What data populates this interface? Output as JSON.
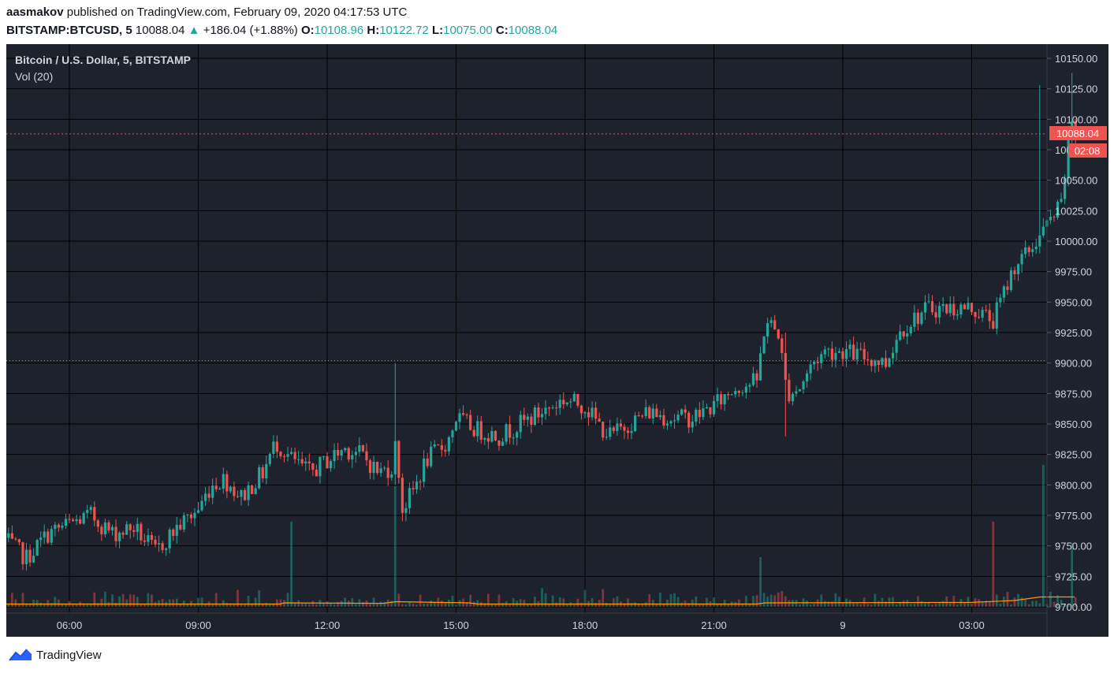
{
  "header": {
    "user": "aasmakov",
    "published_text": "published on TradingView.com, February 09, 2020 04:17:53 UTC",
    "symbol": "BITSTAMP:BTCUSD, 5",
    "last": "10088.04",
    "change": "+186.04 (+1.88%)",
    "o_label": "O:",
    "o_value": "10108.96",
    "h_label": "H:",
    "h_value": "10122.72",
    "l_label": "L:",
    "l_value": "10075.00",
    "c_label": "C:",
    "c_value": "10088.04"
  },
  "legend": {
    "series_title": "Bitcoin / U.S. Dollar, 5, BITSTAMP",
    "volume_title": "Vol (20)"
  },
  "price_tag": {
    "value": "10088.04",
    "countdown": "02:08"
  },
  "footer": {
    "brand": "TradingView"
  },
  "colors": {
    "background": "#1e222d",
    "grid": "#000000",
    "up": "#26a69a",
    "down": "#ef5350",
    "price_line": "#ef5350",
    "ma_line": "#ff9800",
    "axis_text": "#d1d4dc"
  },
  "chart_data": {
    "type": "candlestick",
    "title": "Bitcoin / U.S. Dollar, 5, BITSTAMP",
    "interval": "5",
    "y_ticks": [
      "9700.00",
      "9725.00",
      "9750.00",
      "9775.00",
      "9800.00",
      "9825.00",
      "9850.00",
      "9875.00",
      "9900.00",
      "9925.00",
      "9950.00",
      "9975.00",
      "10000.00",
      "10025.00",
      "10050.00",
      "10075.00",
      "10100.00",
      "10125.00",
      "10150.00"
    ],
    "ylim": [
      9700,
      10150
    ],
    "x_ticks": [
      "06:00",
      "09:00",
      "12:00",
      "15:00",
      "18:00",
      "21:00",
      "9",
      "03:00"
    ],
    "xlim_hours": [
      4.5,
      29.4
    ],
    "last_price": 10088.04,
    "previous_close": 9902.0,
    "price_path": [
      [
        4.5,
        9755
      ],
      [
        5.0,
        9740
      ],
      [
        5.5,
        9760
      ],
      [
        6.0,
        9768
      ],
      [
        6.5,
        9775
      ],
      [
        7.0,
        9760
      ],
      [
        7.5,
        9765
      ],
      [
        8.0,
        9745
      ],
      [
        8.5,
        9765
      ],
      [
        9.0,
        9780
      ],
      [
        9.3,
        9800
      ],
      [
        9.6,
        9805
      ],
      [
        10.0,
        9790
      ],
      [
        10.5,
        9810
      ],
      [
        10.8,
        9835
      ],
      [
        11.2,
        9820
      ],
      [
        11.6,
        9810
      ],
      [
        12.0,
        9820
      ],
      [
        12.4,
        9830
      ],
      [
        12.8,
        9825
      ],
      [
        13.2,
        9810
      ],
      [
        13.5,
        9815
      ],
      [
        13.6,
        9835
      ],
      [
        13.75,
        9780
      ],
      [
        14.0,
        9795
      ],
      [
        14.3,
        9820
      ],
      [
        14.8,
        9835
      ],
      [
        15.0,
        9855
      ],
      [
        15.5,
        9845
      ],
      [
        16.0,
        9840
      ],
      [
        16.5,
        9850
      ],
      [
        17.0,
        9860
      ],
      [
        17.5,
        9870
      ],
      [
        18.0,
        9865
      ],
      [
        18.3,
        9850
      ],
      [
        18.6,
        9840
      ],
      [
        19.0,
        9850
      ],
      [
        19.5,
        9860
      ],
      [
        20.0,
        9855
      ],
      [
        20.5,
        9855
      ],
      [
        21.0,
        9865
      ],
      [
        21.5,
        9880
      ],
      [
        22.0,
        9885
      ],
      [
        22.2,
        9935
      ],
      [
        22.5,
        9925
      ],
      [
        22.7,
        9875
      ],
      [
        23.0,
        9880
      ],
      [
        23.3,
        9900
      ],
      [
        23.6,
        9910
      ],
      [
        24.0,
        9910
      ],
      [
        24.5,
        9905
      ],
      [
        25.0,
        9900
      ],
      [
        25.3,
        9925
      ],
      [
        25.6,
        9935
      ],
      [
        26.0,
        9945
      ],
      [
        26.5,
        9945
      ],
      [
        27.0,
        9945
      ],
      [
        27.5,
        9935
      ],
      [
        28.0,
        9980
      ],
      [
        28.3,
        9990
      ],
      [
        28.6,
        10005
      ],
      [
        28.9,
        10020
      ],
      [
        29.1,
        10030
      ],
      [
        29.3,
        10105
      ],
      [
        29.4,
        10088
      ]
    ],
    "spike_wicks": [
      [
        13.6,
        9900,
        9800
      ],
      [
        22.7,
        9925,
        9840
      ],
      [
        28.6,
        10128,
        9990
      ],
      [
        29.3,
        10138,
        10070
      ]
    ],
    "volume": {
      "label": "Vol (20)",
      "spikes": [
        [
          11.2,
          0.6
        ],
        [
          13.6,
          0.85
        ],
        [
          22.1,
          0.35
        ],
        [
          27.5,
          0.6
        ],
        [
          28.7,
          1.0
        ],
        [
          29.3,
          0.45
        ]
      ],
      "ma_levels": [
        [
          4.5,
          0.05
        ],
        [
          10.9,
          0.05
        ],
        [
          11.0,
          0.1
        ],
        [
          13.3,
          0.08
        ],
        [
          13.6,
          0.15
        ],
        [
          15.3,
          0.1
        ],
        [
          15.5,
          0.05
        ],
        [
          22.0,
          0.05
        ],
        [
          22.2,
          0.1
        ],
        [
          27.0,
          0.12
        ],
        [
          28.0,
          0.2
        ],
        [
          28.6,
          0.35
        ],
        [
          29.4,
          0.35
        ]
      ]
    }
  }
}
